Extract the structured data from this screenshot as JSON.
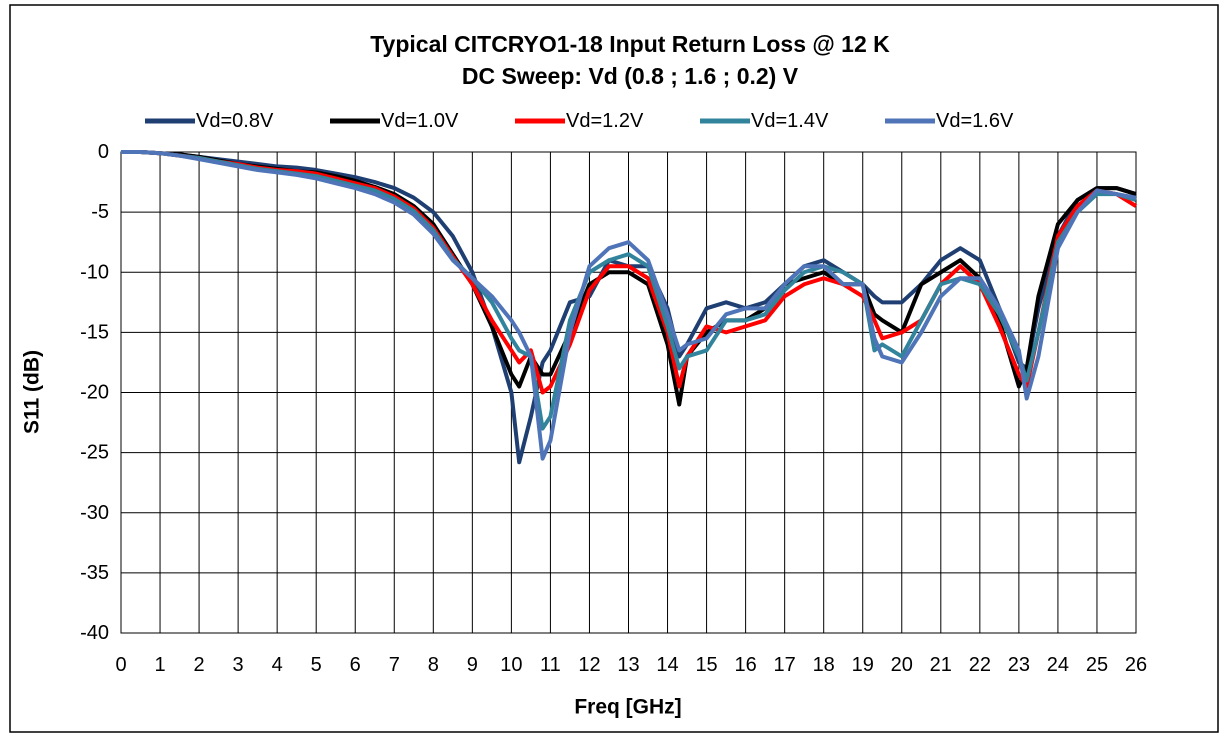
{
  "chart_data": {
    "type": "line",
    "title": "Typical CITCRYO1-18 Input Return Loss @ 12 K",
    "subtitle": "DC Sweep: Vd  (0.8 ; 1.6 ; 0.2) V",
    "x_label": "Freq [GHz]",
    "y_label": "S11 (dB)",
    "x": [
      0,
      0.5,
      1,
      1.5,
      2,
      2.5,
      3,
      3.5,
      4,
      4.5,
      5,
      5.5,
      6,
      6.5,
      7,
      7.5,
      8,
      8.5,
      9,
      9.5,
      10,
      10.2,
      10.5,
      10.8,
      11,
      11.5,
      12,
      12.5,
      13,
      13.5,
      14,
      14.3,
      14.5,
      15,
      15.5,
      16,
      16.5,
      17,
      17.5,
      18,
      18.5,
      19,
      19.3,
      19.5,
      20,
      20.5,
      21,
      21.5,
      22,
      22.5,
      23,
      23.2,
      23.5,
      24,
      24.5,
      25,
      25.5,
      26
    ],
    "series": [
      {
        "name": "Vd=0.8V",
        "color": "#1f3f73",
        "values": [
          0,
          0,
          -0.1,
          -0.2,
          -0.4,
          -0.6,
          -0.8,
          -1.0,
          -1.2,
          -1.3,
          -1.5,
          -1.8,
          -2.1,
          -2.5,
          -3.0,
          -3.8,
          -5.0,
          -7.0,
          -10.0,
          -14.5,
          -20,
          -25.8,
          -22,
          -17.5,
          -16.5,
          -12.5,
          -12,
          -9,
          -9.5,
          -9.5,
          -13,
          -17,
          -16,
          -13,
          -12.5,
          -13,
          -12.5,
          -11,
          -9.5,
          -9,
          -10,
          -11,
          -12,
          -12.5,
          -12.5,
          -11,
          -9,
          -8,
          -9,
          -13,
          -17.5,
          -18,
          -13,
          -7,
          -4,
          -3,
          -3,
          -3.5
        ]
      },
      {
        "name": "Vd=1.0V",
        "color": "#000000",
        "values": [
          0,
          0,
          -0.1,
          -0.2,
          -0.4,
          -0.7,
          -1.0,
          -1.2,
          -1.4,
          -1.6,
          -1.7,
          -2.0,
          -2.4,
          -2.9,
          -3.5,
          -4.5,
          -6.0,
          -8.5,
          -11,
          -14.5,
          -18.5,
          -19.5,
          -17,
          -18.5,
          -18.5,
          -15,
          -11,
          -10,
          -10,
          -11,
          -16,
          -21,
          -17,
          -15,
          -14,
          -14,
          -13,
          -11,
          -10.5,
          -10,
          -11,
          -11,
          -13.5,
          -14,
          -15,
          -11,
          -10,
          -9,
          -10.5,
          -14,
          -19.5,
          -18,
          -12,
          -6,
          -4,
          -3,
          -3,
          -3.5
        ]
      },
      {
        "name": "Vd=1.2V",
        "color": "#ff0000",
        "values": [
          0,
          0,
          -0.1,
          -0.3,
          -0.5,
          -0.8,
          -1.0,
          -1.3,
          -1.5,
          -1.6,
          -1.8,
          -2.2,
          -2.6,
          -3.0,
          -3.7,
          -4.7,
          -6.3,
          -8.7,
          -11,
          -14,
          -16.5,
          -17.5,
          -16.5,
          -20,
          -19.5,
          -16,
          -11.5,
          -9.5,
          -9.5,
          -10.5,
          -15,
          -19.5,
          -17,
          -14.5,
          -15,
          -14.5,
          -14,
          -12,
          -11,
          -10.5,
          -11,
          -12,
          -14,
          -15.5,
          -15,
          -14,
          -11,
          -9.5,
          -11,
          -14.5,
          -18.5,
          -19.5,
          -15,
          -7,
          -4.5,
          -3.2,
          -3.5,
          -4.5
        ]
      },
      {
        "name": "Vd=1.4V",
        "color": "#31849b",
        "values": [
          0,
          0,
          -0.1,
          -0.3,
          -0.5,
          -0.8,
          -1.1,
          -1.4,
          -1.6,
          -1.8,
          -2.0,
          -2.4,
          -2.8,
          -3.2,
          -3.9,
          -4.9,
          -6.5,
          -8.9,
          -10.5,
          -12.5,
          -15.5,
          -16.5,
          -17,
          -23,
          -22,
          -14,
          -10,
          -9,
          -8.5,
          -9.5,
          -14.5,
          -18,
          -17,
          -16.5,
          -14,
          -14,
          -13.5,
          -11.5,
          -10,
          -9.5,
          -10,
          -11,
          -16.5,
          -16,
          -17,
          -14,
          -11,
          -10.5,
          -11,
          -13.5,
          -17,
          -19,
          -15,
          -7.5,
          -5,
          -3.5,
          -3.5,
          -4
        ]
      },
      {
        "name": "Vd=1.6V",
        "color": "#4f75b8",
        "values": [
          0,
          0,
          -0.1,
          -0.3,
          -0.6,
          -0.9,
          -1.2,
          -1.5,
          -1.7,
          -1.9,
          -2.2,
          -2.6,
          -3.0,
          -3.5,
          -4.2,
          -5.2,
          -6.8,
          -9.0,
          -10.5,
          -12,
          -14,
          -15,
          -17,
          -25.5,
          -24,
          -15,
          -9.5,
          -8,
          -7.5,
          -9,
          -13.5,
          -16.5,
          -16,
          -15.5,
          -13.5,
          -13,
          -13,
          -11,
          -9.5,
          -9.5,
          -11,
          -11,
          -15.5,
          -17,
          -17.5,
          -15,
          -12,
          -10.5,
          -10.5,
          -13,
          -16.5,
          -20.5,
          -17,
          -8,
          -5,
          -3.2,
          -3.5,
          -3.8
        ]
      }
    ],
    "xlim": [
      0,
      26
    ],
    "xticks": [
      0,
      1,
      2,
      3,
      4,
      5,
      6,
      7,
      8,
      9,
      10,
      11,
      12,
      13,
      14,
      15,
      16,
      17,
      18,
      19,
      20,
      21,
      22,
      23,
      24,
      25,
      26
    ],
    "ylim": [
      -40,
      0
    ],
    "yticks": [
      -40,
      -35,
      -30,
      -25,
      -20,
      -15,
      -10,
      -5,
      0
    ],
    "grid": true,
    "legend": "top"
  }
}
